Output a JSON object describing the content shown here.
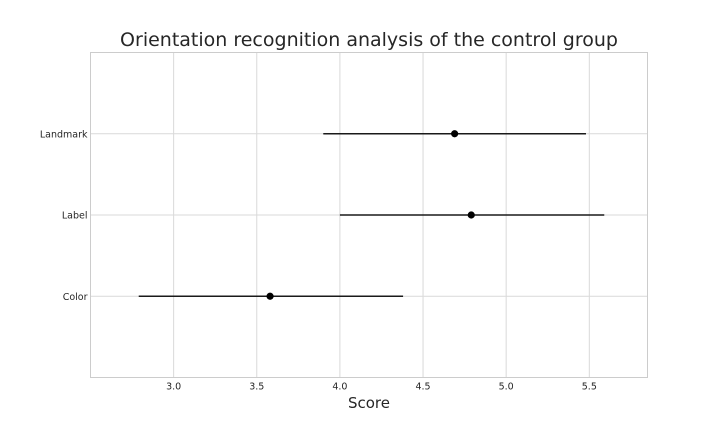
{
  "chart_data": {
    "type": "scatter",
    "title": "Orientation recognition analysis of the control group",
    "xlabel": "Score",
    "ylabel": "",
    "xlim": [
      2.5,
      5.85
    ],
    "xticks": [
      3.0,
      3.5,
      4.0,
      4.5,
      5.0,
      5.5
    ],
    "grid": true,
    "categories": [
      "Color",
      "Label",
      "Landmark"
    ],
    "series": [
      {
        "values": [
          3.58,
          4.79,
          4.69
        ],
        "err_low": [
          2.79,
          4.0,
          3.9
        ],
        "err_high": [
          4.38,
          5.59,
          5.48
        ]
      }
    ]
  }
}
